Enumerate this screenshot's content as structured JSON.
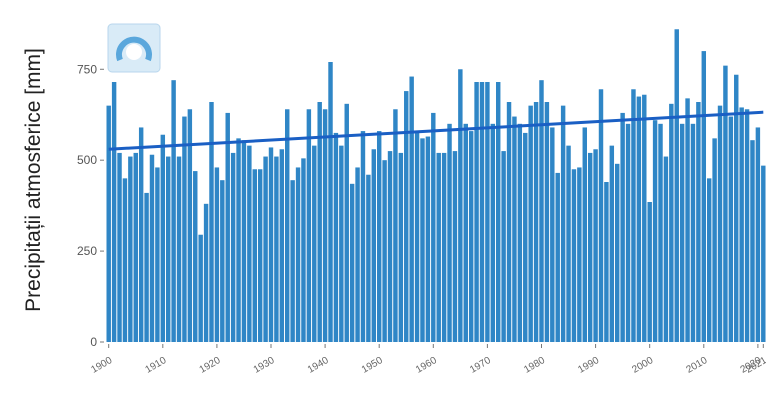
{
  "chart_data": {
    "type": "bar",
    "title": "",
    "xlabel": "",
    "ylabel": "Precipitații atmosferice [mm]",
    "ylim": [
      0,
      880
    ],
    "yticks": [
      0,
      250,
      500,
      750
    ],
    "ytick_labels": [
      "0",
      "250",
      "500",
      "750"
    ],
    "xlim": [
      1899.5,
      2021.5
    ],
    "xticks": [
      1900,
      1910,
      1920,
      1930,
      1940,
      1950,
      1960,
      1970,
      1980,
      1990,
      2000,
      2010,
      2020,
      2021
    ],
    "xtick_labels": [
      "1900",
      "1910",
      "1920",
      "1930",
      "1940",
      "1950",
      "1960",
      "1970",
      "1980",
      "1990",
      "2000",
      "2010",
      "2020",
      "2021"
    ],
    "grid": false,
    "legend": "none",
    "bar_color": "#2f86c6",
    "trend_color": "#1a5fc4",
    "trend_line": {
      "x": [
        1900,
        2021
      ],
      "y": [
        530,
        632
      ]
    },
    "x": [
      1900,
      1901,
      1902,
      1903,
      1904,
      1905,
      1906,
      1907,
      1908,
      1909,
      1910,
      1911,
      1912,
      1913,
      1914,
      1915,
      1916,
      1917,
      1918,
      1919,
      1920,
      1921,
      1922,
      1923,
      1924,
      1925,
      1926,
      1927,
      1928,
      1929,
      1930,
      1931,
      1932,
      1933,
      1934,
      1935,
      1936,
      1937,
      1938,
      1939,
      1940,
      1941,
      1942,
      1943,
      1944,
      1945,
      1946,
      1947,
      1948,
      1949,
      1950,
      1951,
      1952,
      1953,
      1954,
      1955,
      1956,
      1957,
      1958,
      1959,
      1960,
      1961,
      1962,
      1963,
      1964,
      1965,
      1966,
      1967,
      1968,
      1969,
      1970,
      1971,
      1972,
      1973,
      1974,
      1975,
      1976,
      1977,
      1978,
      1979,
      1980,
      1981,
      1982,
      1983,
      1984,
      1985,
      1986,
      1987,
      1988,
      1989,
      1990,
      1991,
      1992,
      1993,
      1994,
      1995,
      1996,
      1997,
      1998,
      1999,
      2000,
      2001,
      2002,
      2003,
      2004,
      2005,
      2006,
      2007,
      2008,
      2009,
      2010,
      2011,
      2012,
      2013,
      2014,
      2015,
      2016,
      2017,
      2018,
      2019,
      2020,
      2021
    ],
    "values": [
      650,
      715,
      520,
      450,
      510,
      520,
      590,
      410,
      515,
      480,
      570,
      510,
      720,
      510,
      620,
      640,
      470,
      295,
      380,
      660,
      480,
      445,
      630,
      520,
      560,
      555,
      540,
      475,
      475,
      510,
      535,
      510,
      530,
      640,
      445,
      480,
      505,
      640,
      540,
      660,
      640,
      770,
      575,
      540,
      655,
      435,
      480,
      580,
      460,
      530,
      580,
      500,
      525,
      640,
      520,
      690,
      730,
      575,
      560,
      565,
      630,
      520,
      520,
      600,
      525,
      750,
      600,
      580,
      715,
      715,
      715,
      600,
      715,
      525,
      660,
      620,
      600,
      575,
      650,
      660,
      720,
      660,
      590,
      465,
      650,
      540,
      475,
      480,
      590,
      520,
      530,
      695,
      440,
      540,
      490,
      630,
      600,
      695,
      675,
      680,
      385,
      610,
      600,
      510,
      655,
      860,
      600,
      670,
      600,
      660,
      800,
      450,
      560,
      650,
      760,
      620,
      735,
      645,
      640,
      555,
      590,
      485
    ]
  }
}
